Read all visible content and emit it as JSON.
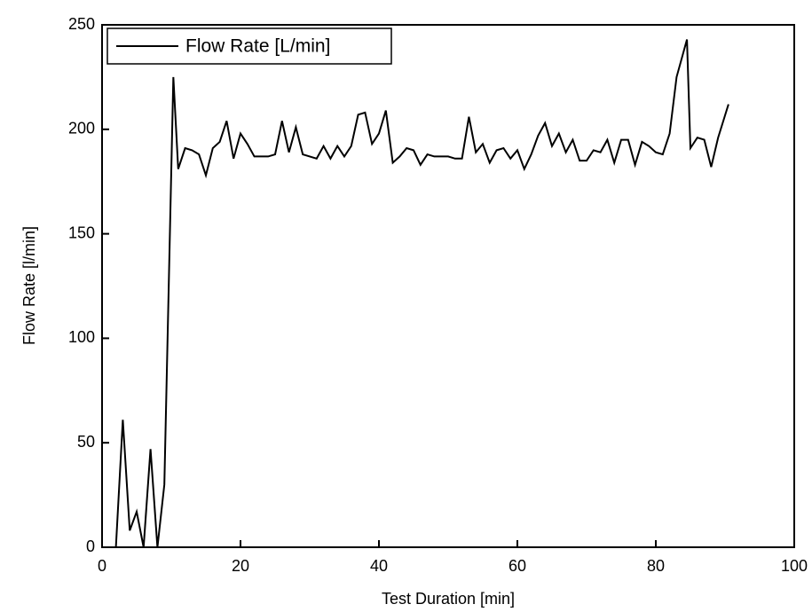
{
  "chart_data": {
    "type": "line",
    "xlabel": "Test Duration [min]",
    "ylabel": "Flow Rate [l/min]",
    "x": [
      1,
      2,
      3,
      4,
      5,
      6,
      7,
      8,
      9,
      10.3,
      11,
      12,
      13,
      14,
      15,
      16,
      17,
      18,
      19,
      20,
      21,
      22,
      23,
      24,
      25,
      26,
      27,
      28,
      29,
      30,
      31,
      32,
      33,
      34,
      35,
      36,
      37,
      38,
      39,
      40,
      41,
      42,
      43,
      44,
      45,
      46,
      47,
      48,
      49,
      50,
      51,
      52,
      53,
      54,
      55,
      56,
      57,
      58,
      59,
      60,
      61,
      62,
      63,
      64,
      65,
      66,
      67,
      68,
      69,
      70,
      71,
      72,
      73,
      74,
      75,
      76,
      77,
      78,
      79,
      80,
      81,
      82,
      83,
      84.5,
      85,
      86,
      87,
      88,
      89,
      90.5
    ],
    "series": [
      {
        "name": "Flow Rate [L/min]",
        "color": "#000000",
        "values": [
          0,
          0,
          61,
          8,
          17,
          0,
          47,
          0,
          30,
          225,
          181,
          191,
          190,
          188,
          178,
          191,
          194,
          204,
          186,
          198,
          193,
          187,
          187,
          187,
          188,
          204,
          189,
          201,
          188,
          187,
          186,
          192,
          186,
          192,
          187,
          192,
          207,
          208,
          193,
          198,
          209,
          184,
          187,
          191,
          190,
          183,
          188,
          187,
          187,
          187,
          186,
          186,
          206,
          189,
          193,
          184,
          190,
          191,
          186,
          190,
          181,
          188,
          197,
          203,
          192,
          198,
          189,
          195,
          185,
          185,
          190,
          189,
          195,
          184,
          195,
          195,
          183,
          194,
          192,
          189,
          188,
          198,
          225,
          243,
          191,
          196,
          195,
          182,
          196,
          212
        ]
      }
    ],
    "xlim": [
      0,
      100
    ],
    "xticks": [
      0,
      20,
      40,
      60,
      80,
      100
    ],
    "ylim": [
      0,
      250
    ],
    "yticks": [
      0,
      50,
      100,
      150,
      200,
      250
    ],
    "legend": "top-left"
  }
}
